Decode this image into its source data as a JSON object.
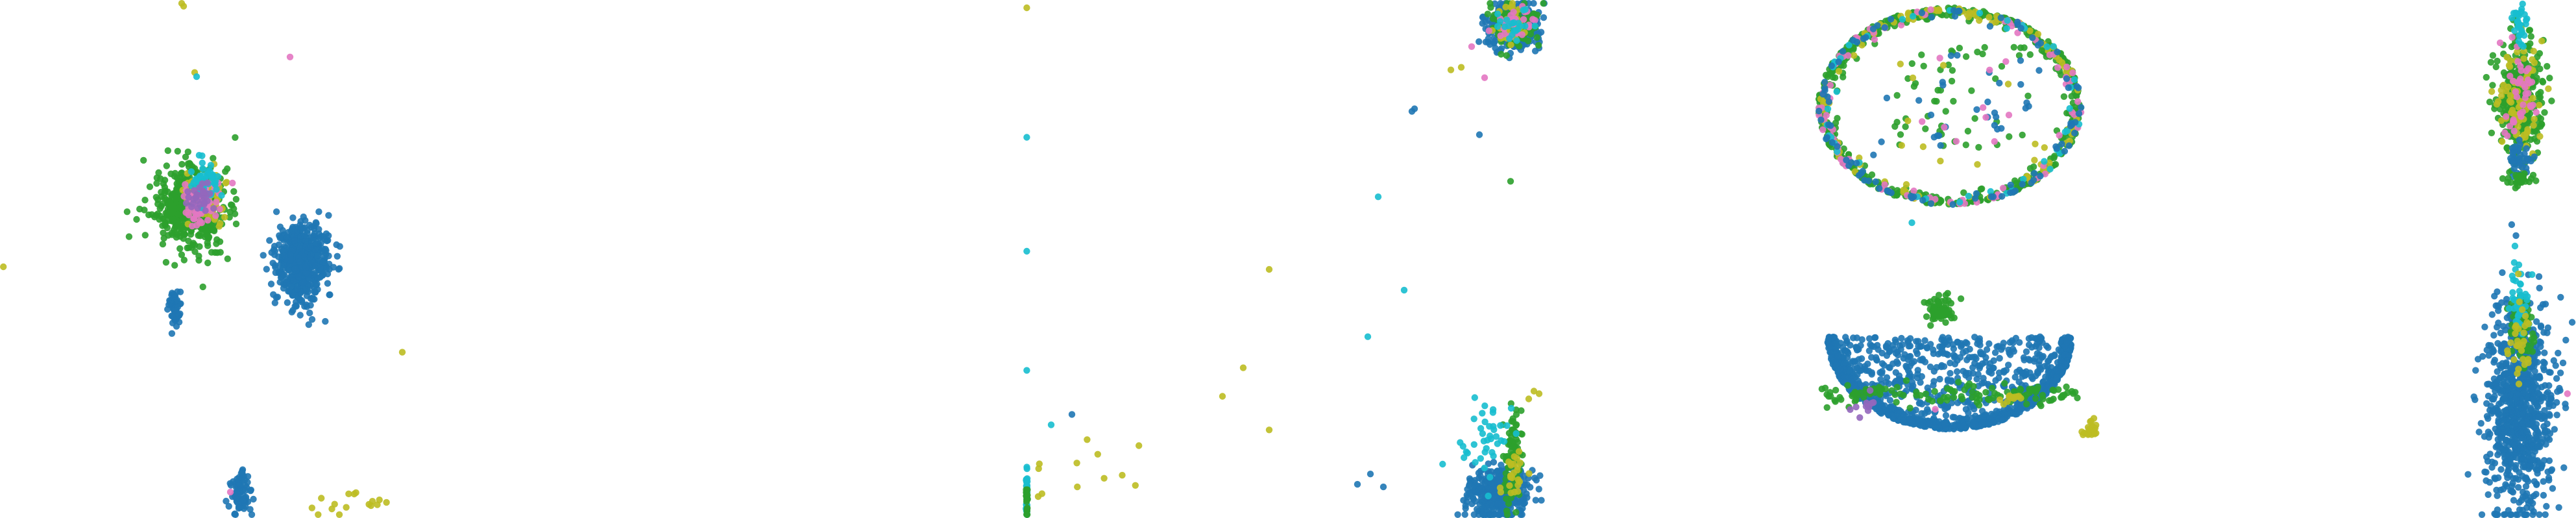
{
  "figure": {
    "panel_count": 5,
    "axes_visible": false,
    "grid": false,
    "legend": "none"
  },
  "palette": {
    "blue": "#1f77b4",
    "green": "#2ca02c",
    "olive": "#bcbd22",
    "cyan": "#17becf",
    "pink": "#e377c2",
    "purple": "#9467bd",
    "grey": "#7f7f7f"
  },
  "chart_data": [
    {
      "type": "scatter",
      "title": "",
      "xlim": [
        0,
        100
      ],
      "ylim": [
        0,
        100
      ],
      "clusters": [
        {
          "color": "green",
          "cx": 29.5,
          "cy": 59.5,
          "rx": 5.2,
          "ry": 7.5,
          "n": 460,
          "shape": "blob"
        },
        {
          "color": "olive",
          "cx": 31.5,
          "cy": 62.0,
          "rx": 2.8,
          "ry": 4.0,
          "n": 90,
          "shape": "blob"
        },
        {
          "color": "pink",
          "cx": 31.0,
          "cy": 60.5,
          "rx": 2.8,
          "ry": 4.0,
          "n": 70,
          "shape": "blob"
        },
        {
          "color": "cyan",
          "cx": 31.5,
          "cy": 65.0,
          "rx": 2.4,
          "ry": 3.5,
          "n": 45,
          "shape": "blob"
        },
        {
          "color": "purple",
          "cx": 30.5,
          "cy": 61.5,
          "rx": 2.0,
          "ry": 3.0,
          "n": 30,
          "shape": "blob"
        },
        {
          "color": "blue",
          "cx": 46.5,
          "cy": 49.5,
          "rx": 3.6,
          "ry": 6.5,
          "n": 620,
          "shape": "blob"
        },
        {
          "color": "blue",
          "cx": 27.0,
          "cy": 41.0,
          "rx": 0.7,
          "ry": 3.5,
          "n": 60,
          "shape": "blob"
        },
        {
          "color": "blue",
          "cx": 37.0,
          "cy": 4.5,
          "rx": 1.4,
          "ry": 4.0,
          "n": 80,
          "shape": "blob"
        },
        {
          "color": "olive",
          "cx": 54.0,
          "cy": 2.5,
          "rx": 6.0,
          "ry": 2.5,
          "n": 16,
          "shape": "sparse"
        }
      ],
      "outliers": [
        {
          "x": 28.0,
          "y": 99.5,
          "color": "olive"
        },
        {
          "x": 28.3,
          "y": 98.8,
          "color": "olive"
        },
        {
          "x": 30.0,
          "y": 86.0,
          "color": "olive"
        },
        {
          "x": 30.3,
          "y": 85.2,
          "color": "cyan"
        },
        {
          "x": 44.7,
          "y": 89.0,
          "color": "pink"
        },
        {
          "x": 62.0,
          "y": 32.0,
          "color": "olive"
        },
        {
          "x": 0.5,
          "y": 48.5,
          "color": "olive"
        },
        {
          "x": 35.5,
          "y": 5.0,
          "color": "pink"
        }
      ]
    },
    {
      "type": "scatter",
      "title": "",
      "xlim": [
        0,
        100
      ],
      "ylim": [
        0,
        100
      ],
      "clusters": [
        {
          "color": "blue",
          "cx": 94.0,
          "cy": 95.0,
          "rx": 4.5,
          "ry": 4.5,
          "n": 260,
          "shape": "blob"
        },
        {
          "color": "green",
          "cx": 94.5,
          "cy": 95.5,
          "rx": 4.0,
          "ry": 4.0,
          "n": 140,
          "shape": "blob"
        },
        {
          "color": "olive",
          "cx": 93.5,
          "cy": 95.0,
          "rx": 3.5,
          "ry": 3.5,
          "n": 40,
          "shape": "blob"
        },
        {
          "color": "pink",
          "cx": 94.0,
          "cy": 96.0,
          "rx": 3.5,
          "ry": 3.5,
          "n": 30,
          "shape": "blob"
        },
        {
          "color": "cyan",
          "cx": 94.0,
          "cy": 95.0,
          "rx": 3.0,
          "ry": 3.0,
          "n": 20,
          "shape": "blob"
        },
        {
          "color": "blue",
          "cx": 91.5,
          "cy": 4.5,
          "rx": 5.0,
          "ry": 4.5,
          "n": 420,
          "shape": "blob"
        },
        {
          "color": "green",
          "cx": 94.0,
          "cy": 13.0,
          "rx": 1.4,
          "ry": 9.0,
          "n": 90,
          "shape": "blob"
        },
        {
          "color": "cyan",
          "cx": 89.0,
          "cy": 16.0,
          "rx": 5.0,
          "ry": 7.0,
          "n": 40,
          "shape": "blob"
        },
        {
          "color": "olive",
          "cx": 94.0,
          "cy": 8.0,
          "rx": 2.0,
          "ry": 4.0,
          "n": 25,
          "shape": "blob"
        },
        {
          "color": "olive",
          "cx": 12.0,
          "cy": 10.0,
          "rx": 10.0,
          "ry": 6.0,
          "n": 12,
          "shape": "sparse"
        },
        {
          "color": "cyan",
          "cx": 0.3,
          "cy": 5.0,
          "rx": 0.15,
          "ry": 5.0,
          "n": 30,
          "shape": "blob"
        },
        {
          "color": "green",
          "cx": 0.3,
          "cy": 3.0,
          "rx": 0.15,
          "ry": 3.0,
          "n": 20,
          "shape": "blob"
        }
      ],
      "outliers": [
        {
          "x": 0.3,
          "y": 98.5,
          "color": "olive"
        },
        {
          "x": 0.3,
          "y": 73.5,
          "color": "cyan"
        },
        {
          "x": 0.3,
          "y": 51.5,
          "color": "cyan"
        },
        {
          "x": 0.3,
          "y": 28.5,
          "color": "cyan"
        },
        {
          "x": 47.0,
          "y": 48.0,
          "color": "olive"
        },
        {
          "x": 86.0,
          "y": 91.0,
          "color": "pink"
        },
        {
          "x": 84.0,
          "y": 87.0,
          "color": "olive"
        },
        {
          "x": 88.5,
          "y": 85.0,
          "color": "pink"
        },
        {
          "x": 82.0,
          "y": 86.5,
          "color": "olive"
        },
        {
          "x": 75.0,
          "y": 79.0,
          "color": "blue"
        },
        {
          "x": 74.5,
          "y": 78.5,
          "color": "blue"
        },
        {
          "x": 87.5,
          "y": 74.0,
          "color": "blue"
        },
        {
          "x": 93.5,
          "y": 65.0,
          "color": "green"
        },
        {
          "x": 68.0,
          "y": 62.0,
          "color": "cyan"
        },
        {
          "x": 73.0,
          "y": 44.0,
          "color": "cyan"
        },
        {
          "x": 66.0,
          "y": 35.0,
          "color": "cyan"
        },
        {
          "x": 42.0,
          "y": 29.0,
          "color": "olive"
        },
        {
          "x": 38.0,
          "y": 23.5,
          "color": "olive"
        },
        {
          "x": 47.0,
          "y": 17.0,
          "color": "olive"
        },
        {
          "x": 5.0,
          "y": 18.0,
          "color": "cyan"
        },
        {
          "x": 9.0,
          "y": 20.0,
          "color": "blue"
        },
        {
          "x": 97.0,
          "y": 23.0,
          "color": "olive"
        },
        {
          "x": 99.0,
          "y": 24.0,
          "color": "olive"
        },
        {
          "x": 98.0,
          "y": 24.5,
          "color": "olive"
        },
        {
          "x": 64.0,
          "y": 6.5,
          "color": "blue"
        },
        {
          "x": 66.5,
          "y": 8.5,
          "color": "blue"
        },
        {
          "x": 69.0,
          "y": 6.0,
          "color": "blue"
        }
      ]
    },
    {
      "type": "scatter",
      "title": "",
      "xlim": [
        0,
        100
      ],
      "ylim": [
        0,
        100
      ],
      "clusters": [
        {
          "color": "green",
          "cx": 50.0,
          "cy": 79.5,
          "rx": 45.0,
          "ry": 19.0,
          "n": 520,
          "shape": "ring"
        },
        {
          "color": "olive",
          "cx": 50.0,
          "cy": 79.5,
          "rx": 45.0,
          "ry": 19.0,
          "n": 110,
          "shape": "ring"
        },
        {
          "color": "pink",
          "cx": 50.0,
          "cy": 79.5,
          "rx": 45.0,
          "ry": 19.0,
          "n": 80,
          "shape": "ring"
        },
        {
          "color": "cyan",
          "cx": 50.0,
          "cy": 79.5,
          "rx": 45.0,
          "ry": 19.0,
          "n": 45,
          "shape": "ring"
        },
        {
          "color": "blue",
          "cx": 50.0,
          "cy": 79.5,
          "rx": 45.0,
          "ry": 19.0,
          "n": 90,
          "shape": "ring"
        },
        {
          "color": "green",
          "cx": 55.0,
          "cy": 81.0,
          "rx": 28.0,
          "ry": 10.0,
          "n": 55,
          "shape": "sparse"
        },
        {
          "color": "blue",
          "cx": 52.0,
          "cy": 81.0,
          "rx": 30.0,
          "ry": 11.0,
          "n": 30,
          "shape": "sparse"
        },
        {
          "color": "olive",
          "cx": 58.0,
          "cy": 78.0,
          "rx": 26.0,
          "ry": 10.0,
          "n": 12,
          "shape": "sparse"
        },
        {
          "color": "pink",
          "cx": 60.0,
          "cy": 80.0,
          "rx": 20.0,
          "ry": 9.0,
          "n": 10,
          "shape": "sparse"
        },
        {
          "color": "blue",
          "cx": 50.0,
          "cy": 18.0,
          "rx": 42.0,
          "ry": 17.0,
          "n": 1300,
          "shape": "bowl"
        },
        {
          "color": "green",
          "cx": 50.0,
          "cy": 24.0,
          "rx": 44.0,
          "ry": 2.0,
          "n": 130,
          "shape": "band"
        },
        {
          "color": "green",
          "cx": 46.0,
          "cy": 40.0,
          "rx": 4.0,
          "ry": 2.5,
          "n": 70,
          "shape": "blob"
        },
        {
          "color": "olive",
          "cx": 98.0,
          "cy": 17.0,
          "rx": 3.0,
          "ry": 2.0,
          "n": 25,
          "shape": "blob"
        },
        {
          "color": "olive",
          "cx": 72.0,
          "cy": 23.0,
          "rx": 3.0,
          "ry": 1.5,
          "n": 12,
          "shape": "blob"
        },
        {
          "color": "purple",
          "cx": 20.0,
          "cy": 22.0,
          "rx": 4.0,
          "ry": 2.0,
          "n": 10,
          "shape": "blob"
        }
      ],
      "outliers": [
        {
          "x": 37.0,
          "y": 57.0,
          "color": "cyan"
        },
        {
          "x": 45.0,
          "y": 21.0,
          "color": "pink"
        }
      ]
    },
    {
      "type": "scatter",
      "title": "",
      "xlim": [
        0,
        100
      ],
      "ylim": [
        0,
        100
      ],
      "clusters": [
        {
          "color": "green",
          "cx": 50.0,
          "cy": 80.5,
          "rx": 20.0,
          "ry": 12.5,
          "n": 330,
          "shape": "blob"
        },
        {
          "color": "olive",
          "cx": 50.0,
          "cy": 81.0,
          "rx": 18.0,
          "ry": 11.0,
          "n": 80,
          "shape": "blob"
        },
        {
          "color": "pink",
          "cx": 50.0,
          "cy": 81.0,
          "rx": 16.0,
          "ry": 10.0,
          "n": 40,
          "shape": "blob"
        },
        {
          "color": "cyan",
          "cx": 50.0,
          "cy": 96.0,
          "rx": 6.0,
          "ry": 3.5,
          "n": 30,
          "shape": "blob"
        },
        {
          "color": "blue",
          "cx": 50.0,
          "cy": 69.0,
          "rx": 12.0,
          "ry": 3.5,
          "n": 40,
          "shape": "blob"
        },
        {
          "color": "green",
          "cx": 50.0,
          "cy": 65.5,
          "rx": 14.0,
          "ry": 1.0,
          "n": 30,
          "shape": "blob"
        },
        {
          "color": "blue",
          "cx": 50.0,
          "cy": 21.0,
          "rx": 28.0,
          "ry": 18.0,
          "n": 850,
          "shape": "blob"
        },
        {
          "color": "green",
          "cx": 52.0,
          "cy": 37.0,
          "rx": 10.0,
          "ry": 6.0,
          "n": 70,
          "shape": "blob"
        },
        {
          "color": "cyan",
          "cx": 50.0,
          "cy": 42.0,
          "rx": 7.0,
          "ry": 6.0,
          "n": 40,
          "shape": "blob"
        },
        {
          "color": "olive",
          "cx": 50.0,
          "cy": 35.0,
          "rx": 10.0,
          "ry": 8.0,
          "n": 30,
          "shape": "blob"
        }
      ],
      "outliers": [
        {
          "x": 46.0,
          "y": 52.5,
          "color": "cyan"
        },
        {
          "x": 95.0,
          "y": 24.0,
          "color": "pink"
        },
        {
          "x": 93.0,
          "y": 22.0,
          "color": "blue"
        }
      ]
    },
    {
      "type": "scatter",
      "title": "",
      "xlim": [
        0,
        100
      ],
      "ylim": [
        0,
        100
      ],
      "clusters": [],
      "outliers": []
    }
  ]
}
